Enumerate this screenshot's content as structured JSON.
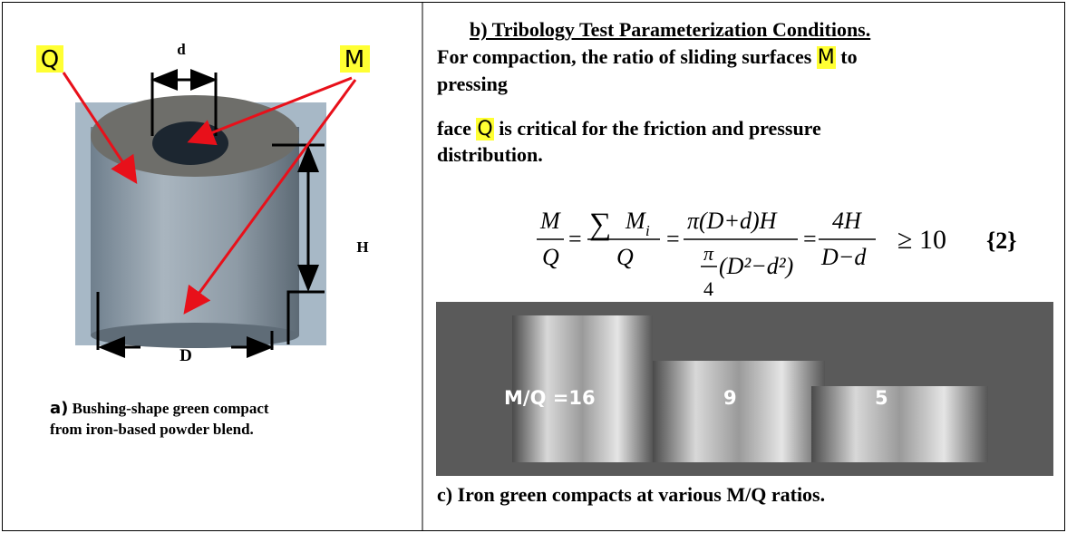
{
  "panel_a": {
    "labels": {
      "Q": "Q",
      "d": "d",
      "M": "M",
      "H": "H",
      "D": "D"
    },
    "caption_letter": "a)",
    "caption_line1": "Bushing-shape green compact",
    "caption_line2": "from iron-based powder blend."
  },
  "panel_b": {
    "title": "b) Tribology Test Parameterization Conditions.",
    "line1": [
      "For compaction, the ratio of sliding surfaces",
      "M",
      "to"
    ],
    "line2": "pressing",
    "line3": [
      "face",
      "Q",
      "is critical for the friction and pressure"
    ],
    "line4": "distribution.",
    "formula": {
      "M": "M",
      "Q": "Q",
      "equals": "=",
      "sum": "∑",
      "Mi": "M",
      "i": "i",
      "num3": "π(D+d)H",
      "pi": "π",
      "four": "4",
      "den3": "(D²−d²)",
      "num4": "4H",
      "den4": "D−d",
      "geq": "≥ 10",
      "eqno": "{2}"
    }
  },
  "panel_c": {
    "labels": [
      "M/Q =16",
      "9",
      "5"
    ],
    "caption": "c) Iron green compacts at various M/Q ratios."
  }
}
